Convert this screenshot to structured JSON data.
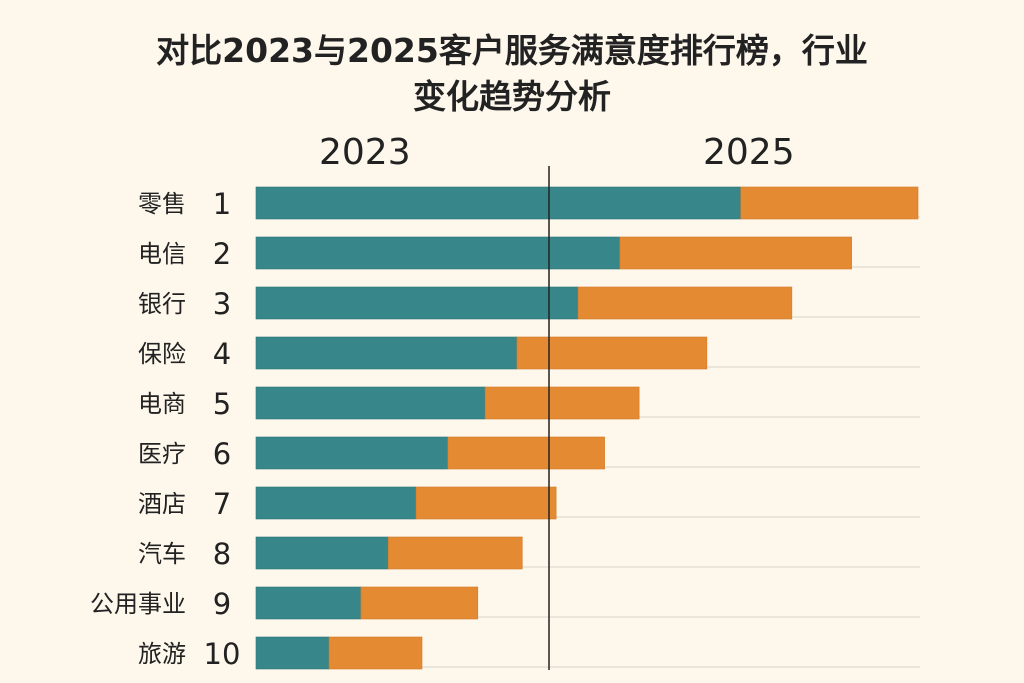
{
  "chart_data": {
    "type": "bar",
    "orientation": "horizontal",
    "stacked": true,
    "title": "对比2023与2025客户服务满意度排行榜，行业变化趋势分析",
    "title_lines": [
      "对比2023与2025客户服务满意度排行榜，行业",
      "变化趋势分析"
    ],
    "column_headers": [
      "2023",
      "2025"
    ],
    "categories": [
      "零售",
      "电信",
      "银行",
      "保险",
      "电商",
      "医疗",
      "酒店",
      "汽车",
      "公用事业",
      "旅游"
    ],
    "ranks": [
      "1",
      "2",
      "3",
      "4",
      "5",
      "6",
      "7",
      "8",
      "9",
      "10"
    ],
    "series": [
      {
        "name": "2023",
        "color": "#37878a",
        "values": [
          73.0,
          54.8,
          48.5,
          39.3,
          34.5,
          28.9,
          24.1,
          19.9,
          15.8,
          11.0
        ]
      },
      {
        "name": "2025",
        "color": "#e48a32",
        "values": [
          26.7,
          34.9,
          32.2,
          28.6,
          23.2,
          23.6,
          21.1,
          20.2,
          17.6,
          14.0
        ]
      }
    ],
    "xlim": [
      0,
      100
    ],
    "axis_values_shown": false,
    "grid": true,
    "divider_color": "#222222",
    "gridline_color": "#d8d4cc"
  }
}
